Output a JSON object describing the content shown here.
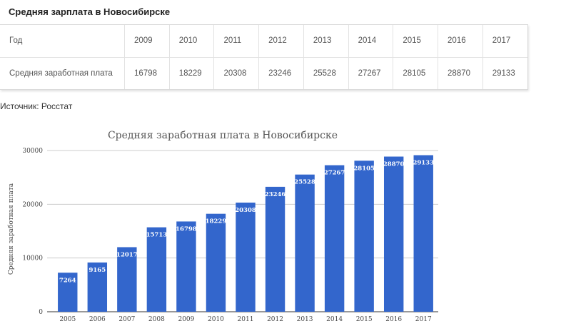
{
  "page": {
    "title": "Средняя зарплата в Новосибирске",
    "source": "Источник: Росстат"
  },
  "table": {
    "header_label": "Год",
    "row_label": "Средняя заработная плата",
    "years": [
      "2009",
      "2010",
      "2011",
      "2012",
      "2013",
      "2014",
      "2015",
      "2016",
      "2017"
    ],
    "values": [
      "16798",
      "18229",
      "20308",
      "23246",
      "25528",
      "27267",
      "28105",
      "28870",
      "29133"
    ]
  },
  "chart_data": {
    "type": "bar",
    "title": "Средняя заработная плата в Новосибирске",
    "xlabel": "",
    "ylabel": "Средняя заработная плата",
    "categories": [
      "2005",
      "2006",
      "2007",
      "2008",
      "2009",
      "2010",
      "2011",
      "2012",
      "2013",
      "2014",
      "2015",
      "2016",
      "2017"
    ],
    "values": [
      7264,
      9165,
      12017,
      15713,
      16798,
      18229,
      20308,
      23246,
      25528,
      27267,
      28105,
      28870,
      29133
    ],
    "ylim": [
      0,
      30000
    ],
    "yticks": [
      0,
      10000,
      20000,
      30000
    ],
    "ytick_labels": [
      "0",
      "10000",
      "20000",
      "30000"
    ],
    "grid": true,
    "bar_color": "#3366cc",
    "data_labels": true
  }
}
